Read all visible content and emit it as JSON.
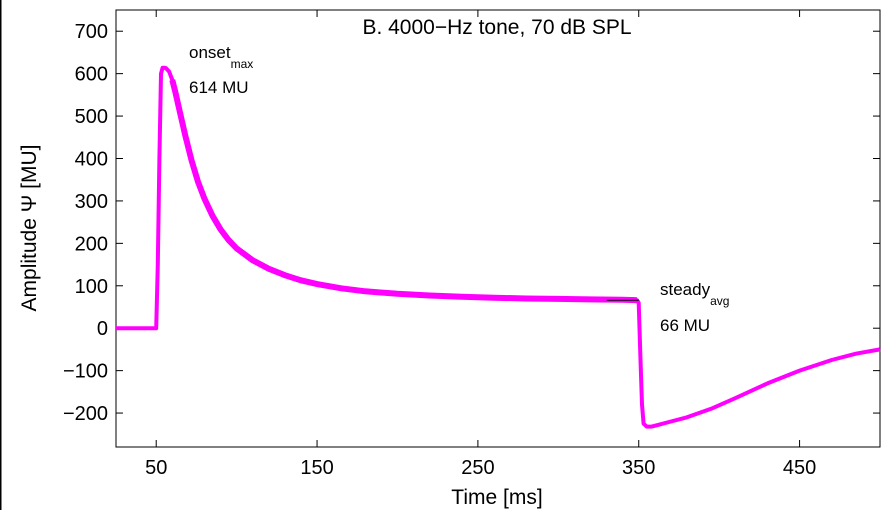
{
  "chart_data": {
    "type": "line",
    "title": "B. 4000−Hz tone, 70 dB SPL",
    "xlabel": "Time [ms]",
    "ylabel": "Amplitude Ψ [MU]",
    "xlim": [
      25,
      500
    ],
    "ylim": [
      -280,
      750
    ],
    "x_ticks": [
      50,
      150,
      250,
      350,
      450
    ],
    "x_tick_labels": [
      "50",
      "150",
      "250",
      "350",
      "450"
    ],
    "y_ticks": [
      -200,
      -100,
      0,
      100,
      200,
      300,
      400,
      500,
      600,
      700
    ],
    "y_tick_labels": [
      "−200",
      "−100",
      "0",
      "100",
      "200",
      "300",
      "400",
      "500",
      "600",
      "700"
    ],
    "grid": false,
    "line_color": "#ff00ff",
    "series": [
      {
        "x": [
          25,
          50,
          51,
          52,
          53,
          54,
          55,
          56,
          58,
          60,
          62,
          65,
          68,
          72,
          76,
          80,
          85,
          90,
          95,
          100,
          110,
          120,
          130,
          140,
          150,
          165,
          180,
          200,
          220,
          240,
          260,
          280,
          300,
          320,
          340,
          349,
          350,
          351,
          352,
          353,
          355,
          358,
          362,
          370,
          380,
          395,
          410,
          430,
          450,
          470,
          485,
          500
        ],
        "y": [
          0,
          0,
          150,
          400,
          600,
          614,
          614,
          613,
          605,
          585,
          555,
          505,
          455,
          395,
          345,
          305,
          265,
          233,
          208,
          188,
          160,
          140,
          125,
          113,
          104,
          94,
          87,
          81,
          77,
          74,
          72,
          70,
          69,
          68,
          67,
          66,
          60,
          -60,
          -180,
          -225,
          -232,
          -232,
          -228,
          -220,
          -210,
          -190,
          -165,
          -130,
          -100,
          -75,
          -60,
          -50
        ]
      }
    ],
    "annotations": [
      {
        "text": "onset",
        "subscript": "max",
        "value_text": "614 MU",
        "x": 60,
        "y": 614
      },
      {
        "text": "steady",
        "subscript": "avg",
        "value_text": "66 MU",
        "x": 350,
        "y": 66
      }
    ],
    "marker_segment": {
      "x": [
        330,
        350
      ],
      "y": 66
    }
  }
}
